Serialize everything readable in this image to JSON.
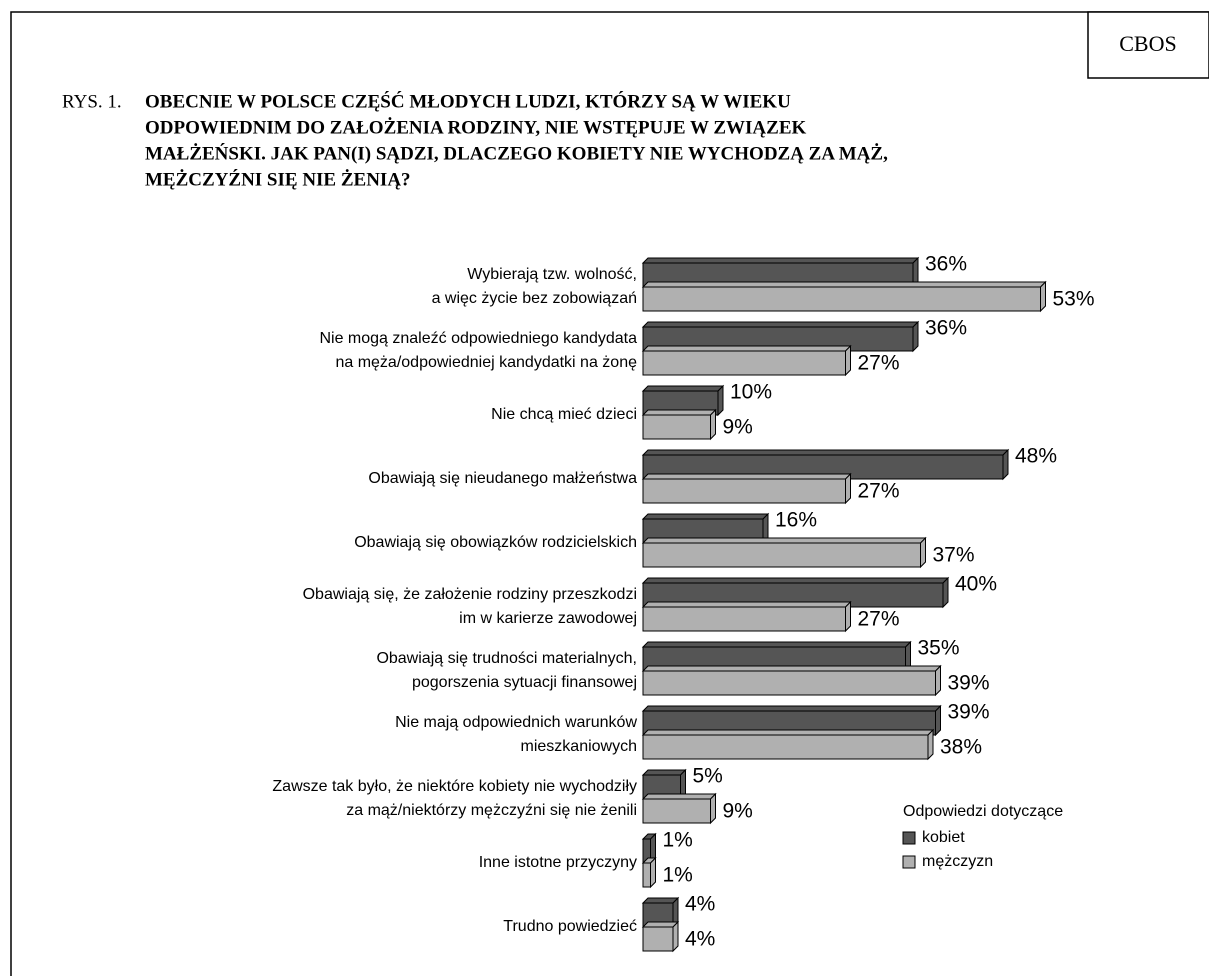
{
  "chart_data": {
    "type": "bar",
    "source": "CBOS",
    "title_prefix": "RYS. 1.",
    "title": [
      "OBECNIE W POLSCE CZĘŚĆ MŁODYCH LUDZI, KTÓRZY SĄ W WIEKU",
      "ODPOWIEDNIM DO ZAŁOŻENIA RODZINY, NIE WSTĘPUJE W ZWIĄZEK",
      "MAŁŻEŃSKI. JAK PAN(I) SĄDZI, DLACZEGO KOBIETY NIE WYCHODZĄ ZA MĄŻ,",
      "MĘŻCZYŹNI SIĘ NIE ŻENIĄ?"
    ],
    "legend_title": "Odpowiedzi dotyczące",
    "categories": [
      [
        "Wybierają tzw. wolność,",
        "a więc życie bez zobowiązań"
      ],
      [
        "Nie mogą znaleźć odpowiedniego kandydata",
        "na męża/odpowiedniej kandydatki na żonę"
      ],
      [
        "Nie chcą mieć dzieci"
      ],
      [
        "Obawiają się nieudanego małżeństwa"
      ],
      [
        "Obawiają się obowiązków rodzicielskich"
      ],
      [
        "Obawiają się, że założenie rodziny przeszkodzi",
        "im w karierze zawodowej"
      ],
      [
        "Obawiają się trudności materialnych,",
        "pogorszenia sytuacji finansowej"
      ],
      [
        "Nie mają odpowiednich warunków",
        "mieszkaniowych"
      ],
      [
        "Zawsze tak było, że niektóre kobiety nie wychodziły",
        "za mąż/niektórzy mężczyźni się nie żenili"
      ],
      [
        "Inne istotne przyczyny"
      ],
      [
        "Trudno powiedzieć"
      ]
    ],
    "series": [
      {
        "name": "kobiet",
        "color": "#555555",
        "values": [
          36,
          36,
          10,
          48,
          16,
          40,
          35,
          39,
          5,
          1,
          4
        ],
        "value_labels": [
          "36%",
          "36%",
          "10%",
          "48%",
          "16%",
          "40%",
          "35%",
          "39%",
          "5%",
          "1%",
          "4%"
        ]
      },
      {
        "name": "mężczyzn",
        "color": "#b0b0b0",
        "values": [
          53,
          27,
          9,
          27,
          37,
          27,
          39,
          38,
          9,
          1,
          4
        ],
        "value_labels": [
          "53%",
          "27%",
          "9%",
          "27%",
          "37%",
          "27%",
          "39%",
          "38%",
          "9%",
          "1%",
          "4%"
        ]
      }
    ]
  }
}
